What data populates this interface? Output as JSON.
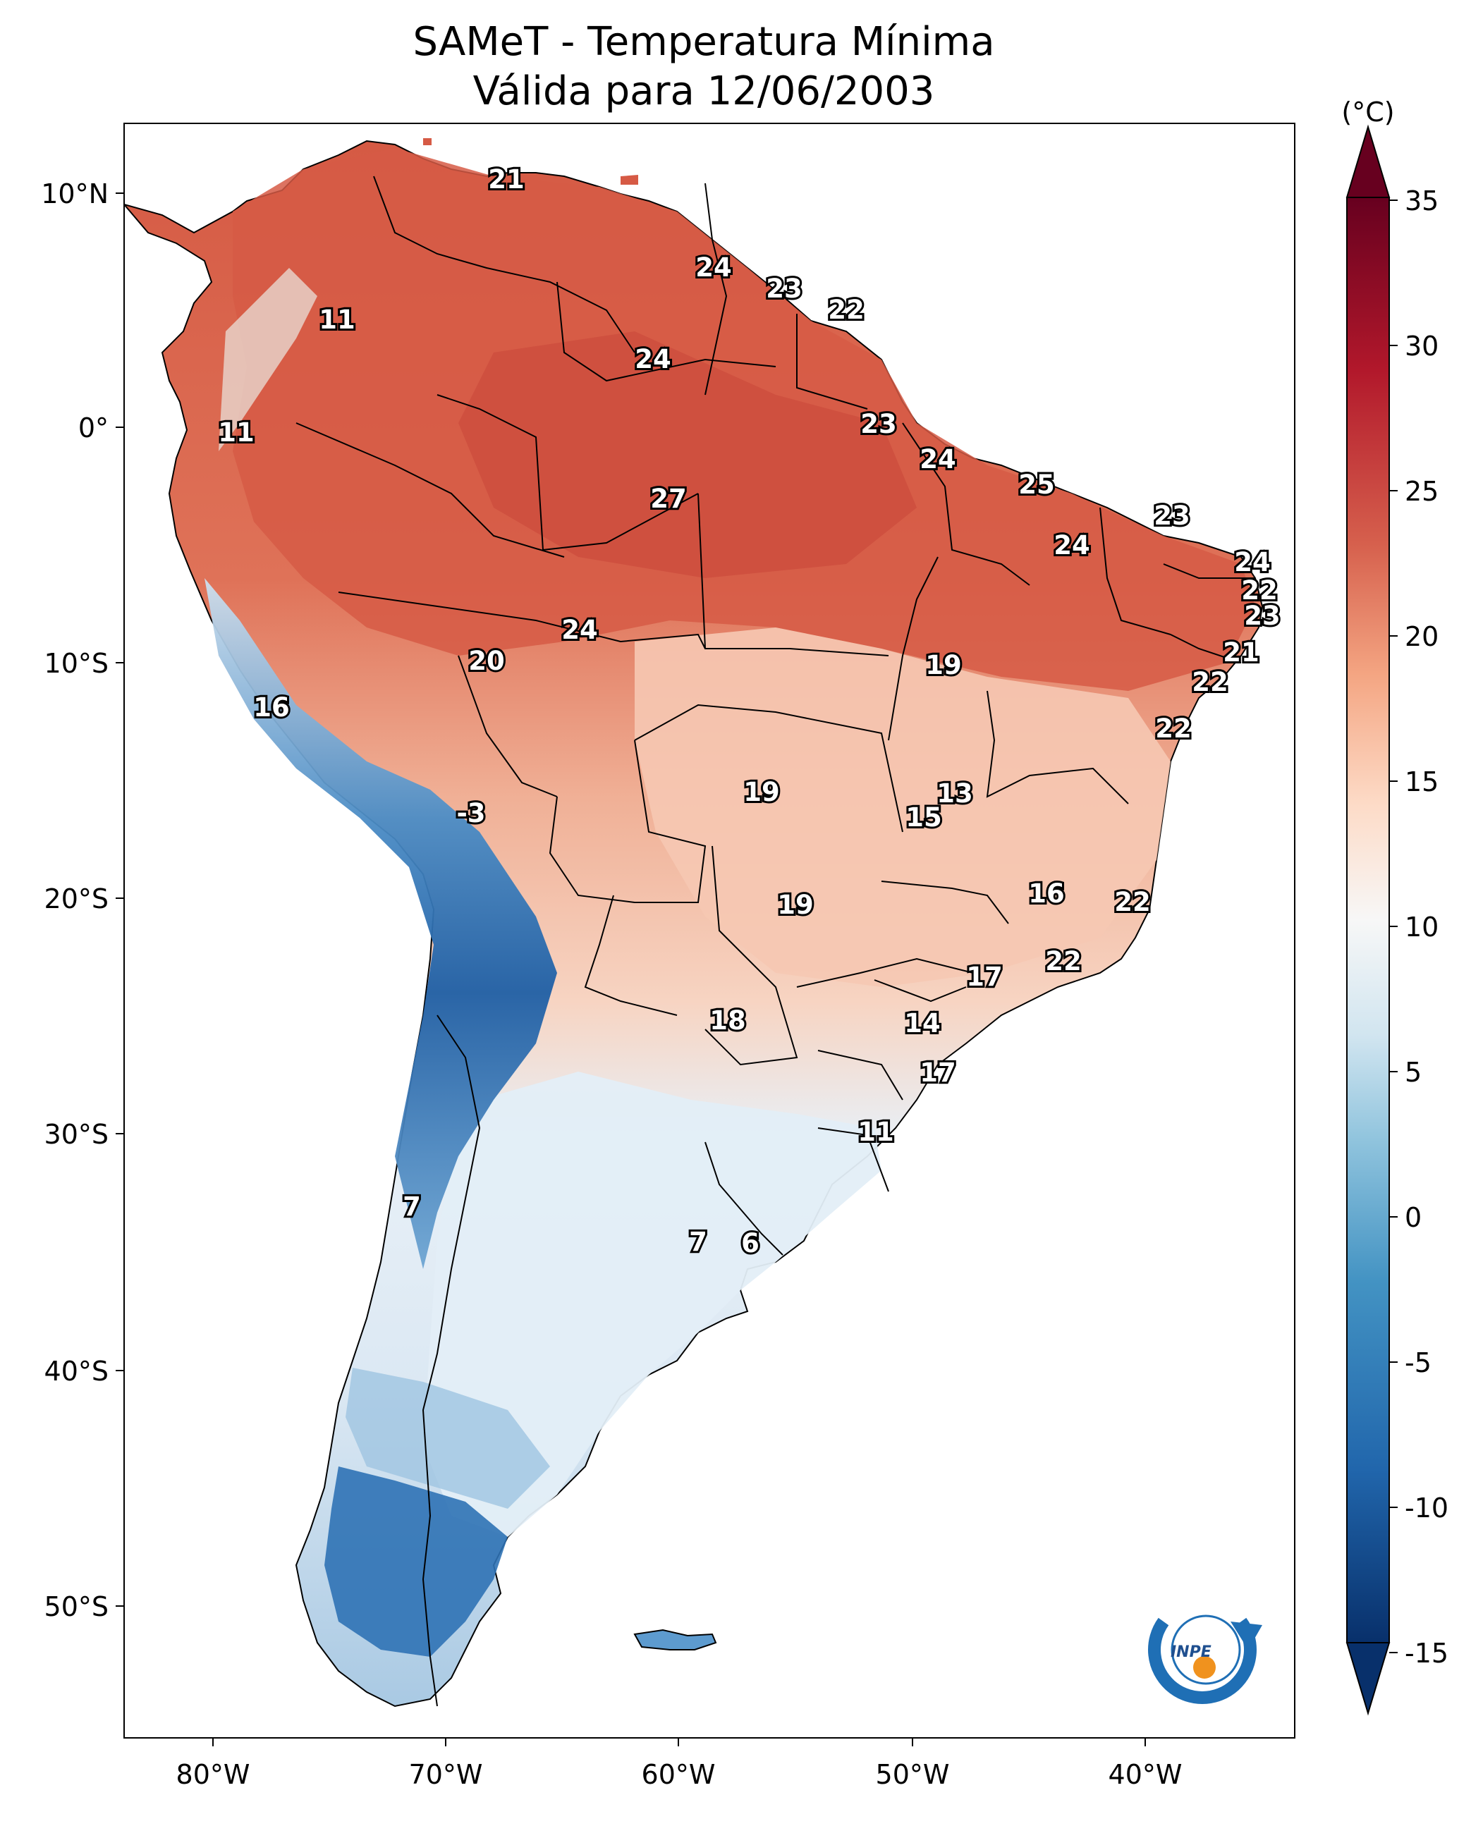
{
  "title": {
    "line1": "SAMeT - Temperatura Mínima",
    "line2": "Válida para 12/06/2003"
  },
  "colorbar": {
    "unit_label": "(°C)",
    "ticks": [
      "35",
      "30",
      "25",
      "20",
      "15",
      "10",
      "5",
      "0",
      "-5",
      "-10",
      "-15"
    ]
  },
  "axes": {
    "lon_ticks": [
      "80°W",
      "70°W",
      "60°W",
      "50°W",
      "40°W"
    ],
    "lat_ticks": [
      "10°N",
      "0°",
      "10°S",
      "20°S",
      "30°S",
      "40°S",
      "50°S"
    ]
  },
  "logo": {
    "text": "INPE"
  },
  "map_values": [
    "21",
    "11",
    "24",
    "23",
    "22",
    "24",
    "11",
    "23",
    "24",
    "27",
    "25",
    "23",
    "24",
    "24",
    "22",
    "23",
    "24",
    "20",
    "19",
    "21",
    "16",
    "22",
    "22",
    "19",
    "13",
    "15",
    "-3",
    "16",
    "22",
    "19",
    "22",
    "17",
    "18",
    "14",
    "17",
    "11",
    "7",
    "7",
    "6"
  ],
  "colors": {
    "warm_dark": "#c94a3c",
    "warm": "#e07a5f",
    "mild": "#f5c6ac",
    "cool": "#dbe9f4",
    "cold": "#4a8cc4",
    "very_cold": "#1e5a9c"
  }
}
